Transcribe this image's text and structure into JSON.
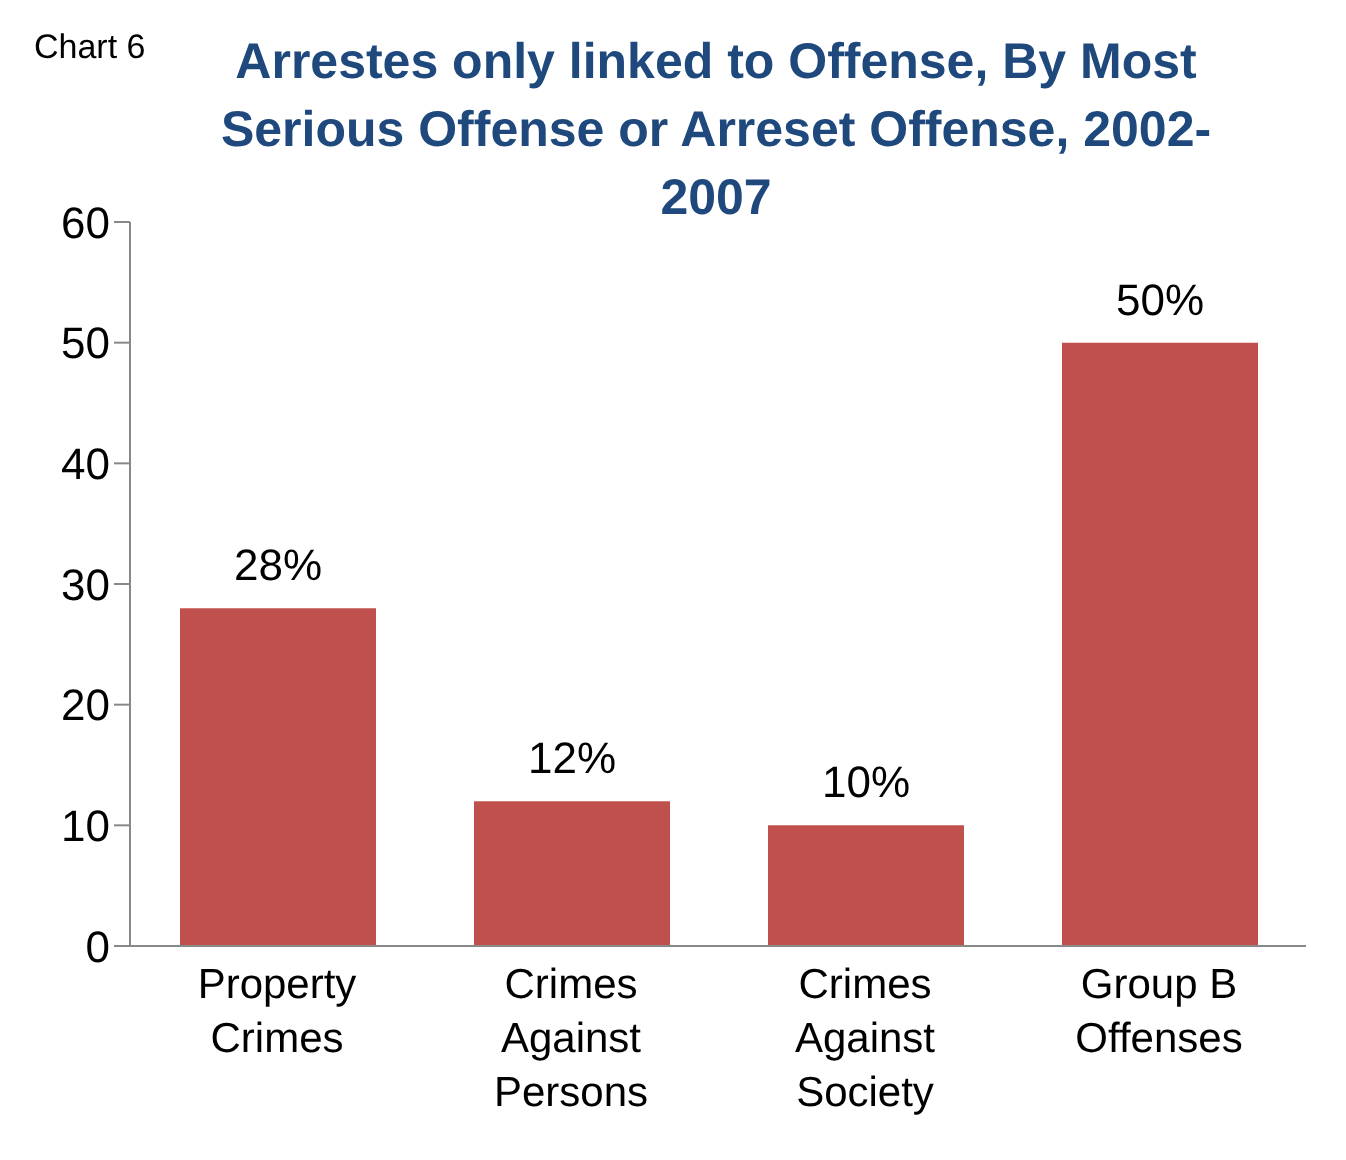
{
  "chart_data": {
    "type": "bar",
    "title": "Arrestes only linked to Offense, By Most Serious Offense or Arreset Offense, 2002-2007",
    "annotations": [
      "Chart 6"
    ],
    "categories": [
      "Property Crimes",
      "Crimes Against Persons",
      "Crimes Against Society",
      "Group B Offenses"
    ],
    "values": [
      28,
      12,
      10,
      50
    ],
    "value_labels": [
      "28%",
      "12%",
      "10%",
      "50%"
    ],
    "color": "#c0504d",
    "ylim": [
      0,
      60
    ],
    "yticks": [
      0,
      10,
      20,
      30,
      40,
      50,
      60
    ]
  }
}
